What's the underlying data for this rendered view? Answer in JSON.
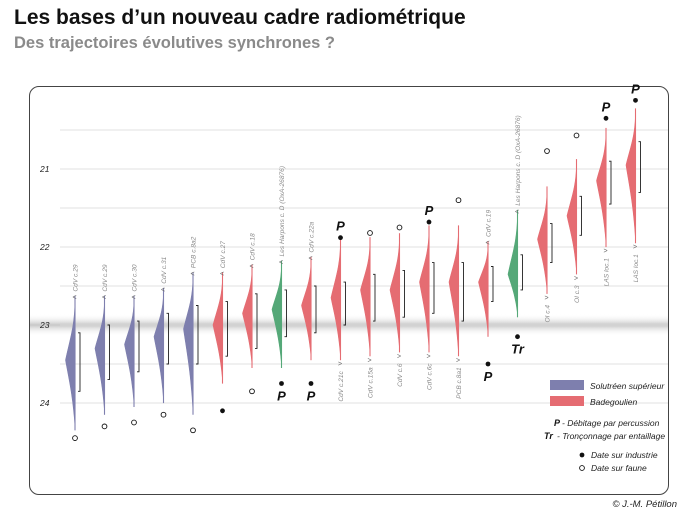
{
  "header": {
    "title": "Les bases d’un nouveau cadre radiométrique",
    "subtitle": "Des trajectoires évolutives synchrones ?"
  },
  "copyright": "© J.-M. Pétillon",
  "colors": {
    "solutreen": "#7e7fae",
    "badegoulien": "#e56c72",
    "harpons": "#55a878"
  },
  "chart_data": {
    "type": "violin",
    "y_axis": {
      "ticks": [
        21,
        22,
        23,
        24
      ],
      "range": [
        20.2,
        24.6
      ],
      "reversed": true
    },
    "series": [
      {
        "name": "Solutréen supérieur",
        "color_key": "solutreen"
      },
      {
        "name": "Badegoulien",
        "color_key": "badegoulien"
      }
    ],
    "samples": [
      {
        "label": "CdV c.29",
        "label_pos": "above",
        "group": "solutreen",
        "peak": 23.45,
        "lo": 22.7,
        "hi": 24.3,
        "iq_lo": 23.1,
        "iq_hi": 23.85,
        "marker": "faune",
        "marker_y": 24.45
      },
      {
        "label": "CdV c.29",
        "label_pos": "above",
        "group": "solutreen",
        "peak": 23.3,
        "lo": 22.7,
        "hi": 24.1,
        "iq_lo": 23.0,
        "iq_hi": 23.7,
        "marker": "faune",
        "marker_y": 24.3
      },
      {
        "label": "CdV c.30",
        "label_pos": "above",
        "group": "solutreen",
        "peak": 23.25,
        "lo": 22.7,
        "hi": 24.0,
        "iq_lo": 22.95,
        "iq_hi": 23.6,
        "marker": "faune",
        "marker_y": 24.25
      },
      {
        "label": "CdV c.31",
        "label_pos": "above",
        "group": "solutreen",
        "peak": 23.15,
        "lo": 22.6,
        "hi": 23.95,
        "iq_lo": 22.85,
        "iq_hi": 23.5,
        "marker": "faune",
        "marker_y": 24.15
      },
      {
        "label": "PCB c.8a2",
        "label_pos": "above",
        "group": "solutreen",
        "peak": 23.05,
        "lo": 22.4,
        "hi": 24.1,
        "iq_lo": 22.75,
        "iq_hi": 23.5,
        "marker": "faune",
        "marker_y": 24.35
      },
      {
        "label": "CdV c.27",
        "label_pos": "above",
        "group": "badegoulien",
        "peak": 23.0,
        "lo": 22.4,
        "hi": 23.7,
        "iq_lo": 22.7,
        "iq_hi": 23.4,
        "marker": "industrie",
        "marker_y": 24.1
      },
      {
        "label": "CdV c.18",
        "label_pos": "above",
        "group": "badegoulien",
        "peak": 22.85,
        "lo": 22.3,
        "hi": 23.5,
        "iq_lo": 22.6,
        "iq_hi": 23.3,
        "marker": "faune",
        "marker_y": 23.85
      },
      {
        "label": "Les Harpons c. D (OxA-26876)",
        "label_pos": "above",
        "group": "harpons",
        "peak": 22.8,
        "lo": 22.25,
        "hi": 23.5,
        "iq_lo": 22.55,
        "iq_hi": 23.15,
        "marker": "industrie",
        "marker_y": 23.75,
        "tag": "P",
        "tag_pos": "below"
      },
      {
        "label": "CdV c.22a",
        "label_pos": "above",
        "group": "badegoulien",
        "peak": 22.75,
        "lo": 22.2,
        "hi": 23.4,
        "iq_lo": 22.5,
        "iq_hi": 23.1,
        "marker": "industrie",
        "marker_y": 23.75,
        "tag": "P",
        "tag_pos": "below"
      },
      {
        "label": "CdV c.21c",
        "label_pos": "below",
        "group": "badegoulien",
        "peak": 22.65,
        "lo": 21.95,
        "hi": 23.4,
        "iq_lo": 22.45,
        "iq_hi": 23.0,
        "marker": "industrie",
        "marker_y": 21.88,
        "tag": "P",
        "tag_pos": "above"
      },
      {
        "label": "CdV c.15a",
        "label_pos": "below",
        "group": "badegoulien",
        "peak": 22.55,
        "lo": 21.95,
        "hi": 23.35,
        "iq_lo": 22.35,
        "iq_hi": 22.95,
        "marker": "faune",
        "marker_y": 21.82
      },
      {
        "label": "CdV c.6",
        "label_pos": "below",
        "group": "badegoulien",
        "peak": 22.55,
        "lo": 21.9,
        "hi": 23.3,
        "iq_lo": 22.3,
        "iq_hi": 22.9,
        "marker": "faune",
        "marker_y": 21.75
      },
      {
        "label": "CdV c.6c",
        "label_pos": "below",
        "group": "badegoulien",
        "peak": 22.45,
        "lo": 21.8,
        "hi": 23.3,
        "iq_lo": 22.2,
        "iq_hi": 22.85,
        "marker": "industrie",
        "marker_y": 21.68,
        "tag": "P",
        "tag_pos": "above"
      },
      {
        "label": "PCB c.8a1",
        "label_pos": "below",
        "group": "badegoulien",
        "peak": 22.45,
        "lo": 21.8,
        "hi": 23.35,
        "iq_lo": 22.2,
        "iq_hi": 22.95,
        "marker": "faune",
        "marker_y": 21.4
      },
      {
        "label": "CdV c.19",
        "label_pos": "above",
        "group": "badegoulien",
        "peak": 22.45,
        "lo": 22.0,
        "hi": 23.1,
        "iq_lo": 22.25,
        "iq_hi": 22.7,
        "marker": "industrie",
        "marker_y": 23.5,
        "tag": "P",
        "tag_pos": "below"
      },
      {
        "label": "Les Harpons c. D (OxA-26876)",
        "label_pos": "above",
        "group": "harpons",
        "peak": 22.35,
        "lo": 21.6,
        "hi": 22.85,
        "iq_lo": 22.1,
        "iq_hi": 22.55,
        "marker": "industrie",
        "marker_y": 23.15,
        "tag": "Tr",
        "tag_pos": "below"
      },
      {
        "label": "OI c.4",
        "label_pos": "below",
        "group": "badegoulien",
        "peak": 21.9,
        "lo": 21.3,
        "hi": 22.55,
        "iq_lo": 21.7,
        "iq_hi": 22.2,
        "marker": "faune",
        "marker_y": 20.77
      },
      {
        "label": "OI c.3",
        "label_pos": "below",
        "group": "badegoulien",
        "peak": 21.6,
        "lo": 20.95,
        "hi": 22.3,
        "iq_lo": 21.35,
        "iq_hi": 21.85,
        "marker": "faune",
        "marker_y": 20.57
      },
      {
        "label": "LAS loc.1",
        "label_pos": "below",
        "group": "badegoulien",
        "peak": 21.15,
        "lo": 20.55,
        "hi": 21.95,
        "iq_lo": 20.9,
        "iq_hi": 21.45,
        "marker": "industrie",
        "marker_y": 20.35,
        "tag": "P",
        "tag_pos": "above"
      },
      {
        "label": "LAS loc.1",
        "label_pos": "below",
        "group": "badegoulien",
        "peak": 20.95,
        "lo": 20.3,
        "hi": 21.9,
        "iq_lo": 20.65,
        "iq_hi": 21.3,
        "marker": "industrie",
        "marker_y": 20.12,
        "tag": "P",
        "tag_pos": "above"
      }
    ],
    "legend": {
      "placement": "bottom-right",
      "items": [
        {
          "label": "Solutréen supérieur",
          "color_key": "solutreen"
        },
        {
          "label": "Badegoulien",
          "color_key": "badegoulien"
        }
      ],
      "abbreviations": [
        {
          "key": "P",
          "text": "- Débitage par percussion"
        },
        {
          "key": "Tr",
          "text": "- Tronçonnage par entaillage"
        }
      ],
      "markers": [
        {
          "symbol": "industrie",
          "text": "Date sur industrie"
        },
        {
          "symbol": "faune",
          "text": "Date sur faune"
        }
      ]
    }
  }
}
